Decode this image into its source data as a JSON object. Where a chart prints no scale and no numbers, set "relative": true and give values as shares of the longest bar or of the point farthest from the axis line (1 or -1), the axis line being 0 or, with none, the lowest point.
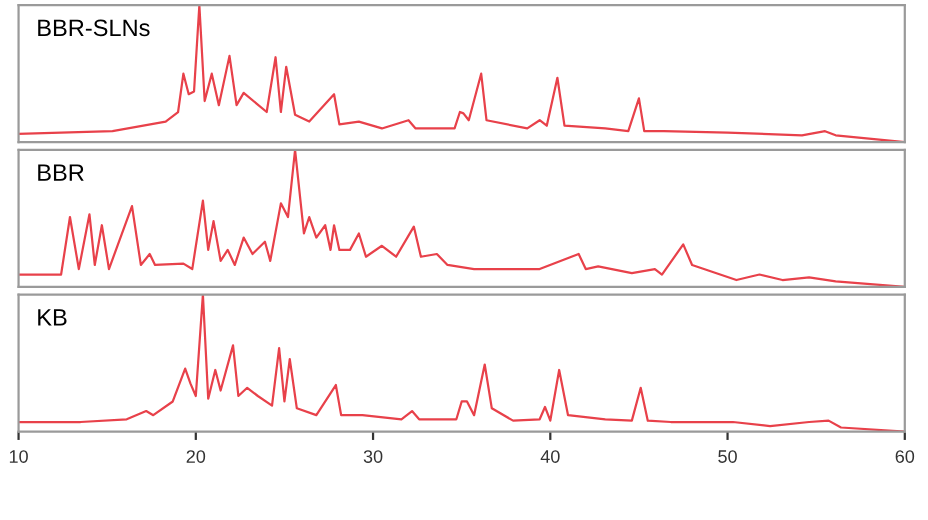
{
  "chart_data": [
    {
      "type": "line",
      "title": "BBR-SLNs",
      "relative": true,
      "xlim": [
        10,
        60
      ],
      "xticks": [
        10,
        20,
        30,
        40,
        50,
        60
      ],
      "tick_labels": false,
      "grid": false,
      "series": [
        {
          "color": "#e8414a",
          "x": [
            10.0,
            15.3,
            18.3,
            19.0,
            19.3,
            19.6,
            19.9,
            20.2,
            20.5,
            20.9,
            21.3,
            21.9,
            22.3,
            22.7,
            24.0,
            24.5,
            24.8,
            25.1,
            25.6,
            26.4,
            27.8,
            28.1,
            29.2,
            30.5,
            32.0,
            32.4,
            34.6,
            34.9,
            35.1,
            35.4,
            36.1,
            36.4,
            38.7,
            39.4,
            39.8,
            40.4,
            40.8,
            43.1,
            44.4,
            45.0,
            45.3,
            46.4,
            50.0,
            54.2,
            55.5,
            56.1,
            60.0
          ],
          "values": [
            0.06,
            0.08,
            0.15,
            0.22,
            0.5,
            0.35,
            0.37,
            1.0,
            0.3,
            0.5,
            0.27,
            0.63,
            0.27,
            0.36,
            0.22,
            0.62,
            0.22,
            0.55,
            0.2,
            0.15,
            0.35,
            0.13,
            0.15,
            0.1,
            0.16,
            0.1,
            0.1,
            0.22,
            0.21,
            0.16,
            0.5,
            0.16,
            0.1,
            0.16,
            0.12,
            0.47,
            0.12,
            0.1,
            0.08,
            0.32,
            0.08,
            0.08,
            0.07,
            0.05,
            0.08,
            0.05,
            0.0
          ]
        }
      ]
    },
    {
      "type": "line",
      "title": "BBR",
      "relative": true,
      "xlim": [
        10,
        60
      ],
      "xticks": [
        10,
        20,
        30,
        40,
        50,
        60
      ],
      "tick_labels": false,
      "grid": false,
      "series": [
        {
          "color": "#e8414a",
          "x": [
            10.0,
            12.4,
            12.9,
            13.4,
            14.0,
            14.3,
            14.7,
            15.1,
            16.4,
            16.9,
            17.4,
            17.7,
            19.3,
            19.8,
            20.4,
            20.7,
            21.0,
            21.4,
            21.8,
            22.2,
            22.7,
            23.2,
            23.9,
            24.2,
            24.8,
            25.2,
            25.6,
            26.1,
            26.4,
            26.8,
            27.3,
            27.6,
            27.8,
            28.1,
            28.7,
            29.2,
            29.6,
            30.5,
            31.3,
            32.3,
            32.7,
            33.6,
            34.2,
            35.7,
            39.4,
            41.6,
            42.0,
            42.7,
            44.6,
            45.9,
            46.3,
            47.5,
            48.0,
            50.5,
            51.8,
            53.1,
            54.6,
            56.1,
            60.0
          ],
          "values": [
            0.09,
            0.09,
            0.51,
            0.13,
            0.53,
            0.16,
            0.45,
            0.13,
            0.59,
            0.16,
            0.24,
            0.16,
            0.17,
            0.13,
            0.63,
            0.27,
            0.48,
            0.19,
            0.27,
            0.16,
            0.36,
            0.24,
            0.33,
            0.19,
            0.61,
            0.51,
            1.0,
            0.39,
            0.51,
            0.36,
            0.45,
            0.27,
            0.45,
            0.27,
            0.27,
            0.39,
            0.22,
            0.3,
            0.22,
            0.44,
            0.22,
            0.24,
            0.16,
            0.13,
            0.13,
            0.24,
            0.13,
            0.15,
            0.1,
            0.13,
            0.09,
            0.31,
            0.16,
            0.05,
            0.09,
            0.05,
            0.07,
            0.04,
            0.0
          ]
        }
      ]
    },
    {
      "type": "line",
      "title": "KB",
      "relative": true,
      "xlim": [
        10,
        60
      ],
      "xticks": [
        10,
        20,
        30,
        40,
        50,
        60
      ],
      "tick_labels": "x",
      "grid": false,
      "series": [
        {
          "color": "#e8414a",
          "x": [
            10.0,
            13.5,
            16.1,
            17.2,
            17.6,
            18.7,
            19.4,
            19.7,
            20.0,
            20.4,
            20.7,
            21.1,
            21.4,
            22.1,
            22.4,
            22.9,
            23.5,
            24.3,
            24.7,
            25.0,
            25.3,
            25.7,
            26.8,
            27.9,
            28.2,
            29.4,
            31.6,
            32.2,
            32.6,
            34.7,
            35.0,
            35.3,
            35.7,
            36.3,
            36.7,
            37.9,
            39.4,
            39.7,
            40.0,
            40.5,
            41.0,
            43.1,
            44.6,
            45.1,
            45.5,
            46.8,
            50.3,
            52.4,
            54.6,
            55.7,
            56.4,
            60.0
          ],
          "values": [
            0.07,
            0.07,
            0.09,
            0.15,
            0.12,
            0.22,
            0.46,
            0.35,
            0.26,
            1.0,
            0.24,
            0.45,
            0.3,
            0.63,
            0.26,
            0.32,
            0.26,
            0.19,
            0.61,
            0.22,
            0.53,
            0.17,
            0.12,
            0.34,
            0.12,
            0.12,
            0.09,
            0.15,
            0.09,
            0.09,
            0.22,
            0.22,
            0.12,
            0.49,
            0.17,
            0.08,
            0.09,
            0.18,
            0.08,
            0.45,
            0.12,
            0.09,
            0.08,
            0.32,
            0.08,
            0.07,
            0.07,
            0.04,
            0.07,
            0.08,
            0.03,
            0.0
          ]
        }
      ]
    }
  ]
}
